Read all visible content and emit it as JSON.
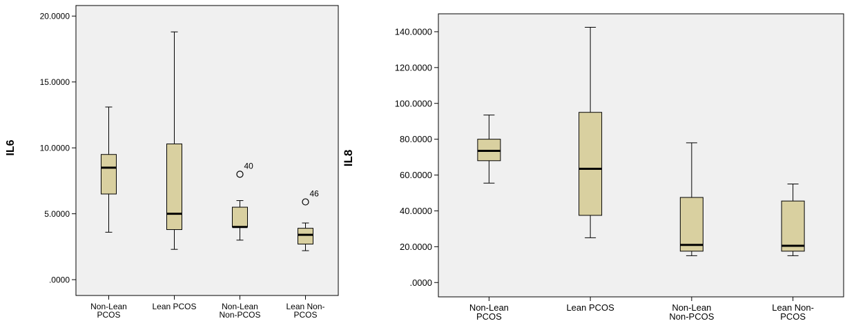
{
  "chart_data": [
    {
      "type": "box",
      "ylabel": "IL6",
      "ylim": [
        -1.2,
        20.8
      ],
      "yticks": [
        ".0000",
        "5.0000",
        "10.0000",
        "15.0000",
        "20.0000"
      ],
      "ytick_values": [
        0,
        5,
        10,
        15,
        20
      ],
      "categories": [
        [
          "Non-Lean",
          "PCOS"
        ],
        [
          "Lean PCOS"
        ],
        [
          "Non-Lean",
          "Non-PCOS"
        ],
        [
          "Lean Non-",
          "PCOS"
        ]
      ],
      "boxes": [
        {
          "min": 3.6,
          "q1": 6.5,
          "median": 8.5,
          "q3": 9.5,
          "max": 13.1
        },
        {
          "min": 2.3,
          "q1": 3.8,
          "median": 5.0,
          "q3": 10.3,
          "max": 18.8
        },
        {
          "min": 3.0,
          "q1": 4.0,
          "median": 4.0,
          "q3": 5.5,
          "max": 6.0
        },
        {
          "min": 2.2,
          "q1": 2.7,
          "median": 3.4,
          "q3": 3.9,
          "max": 4.3
        }
      ],
      "outliers": [
        {
          "category": 2,
          "value": 8.0,
          "label": "40"
        },
        {
          "category": 3,
          "value": 5.9,
          "label": "46"
        }
      ],
      "grid": false,
      "box_color": "#d9d0a0",
      "background_color": "#f0f0f0"
    },
    {
      "type": "box",
      "ylabel": "IL8",
      "ylim": [
        -8,
        150
      ],
      "yticks": [
        ".0000",
        "20.0000",
        "40.0000",
        "60.0000",
        "80.0000",
        "100.0000",
        "120.0000",
        "140.0000"
      ],
      "ytick_values": [
        0,
        20,
        40,
        60,
        80,
        100,
        120,
        140
      ],
      "categories": [
        [
          "Non-Lean",
          "PCOS"
        ],
        [
          "Lean PCOS"
        ],
        [
          "Non-Lean",
          "Non-PCOS"
        ],
        [
          "Lean Non-",
          "PCOS"
        ]
      ],
      "boxes": [
        {
          "min": 55.5,
          "q1": 68,
          "median": 73.5,
          "q3": 80,
          "max": 93.5
        },
        {
          "min": 25,
          "q1": 37.5,
          "median": 63.5,
          "q3": 95,
          "max": 142.5
        },
        {
          "min": 15,
          "q1": 17.5,
          "median": 21,
          "q3": 47.5,
          "max": 78
        },
        {
          "min": 15,
          "q1": 17.5,
          "median": 20.5,
          "q3": 45.5,
          "max": 55
        }
      ],
      "outliers": [],
      "grid": false,
      "box_color": "#d9d0a0",
      "background_color": "#f0f0f0"
    }
  ]
}
